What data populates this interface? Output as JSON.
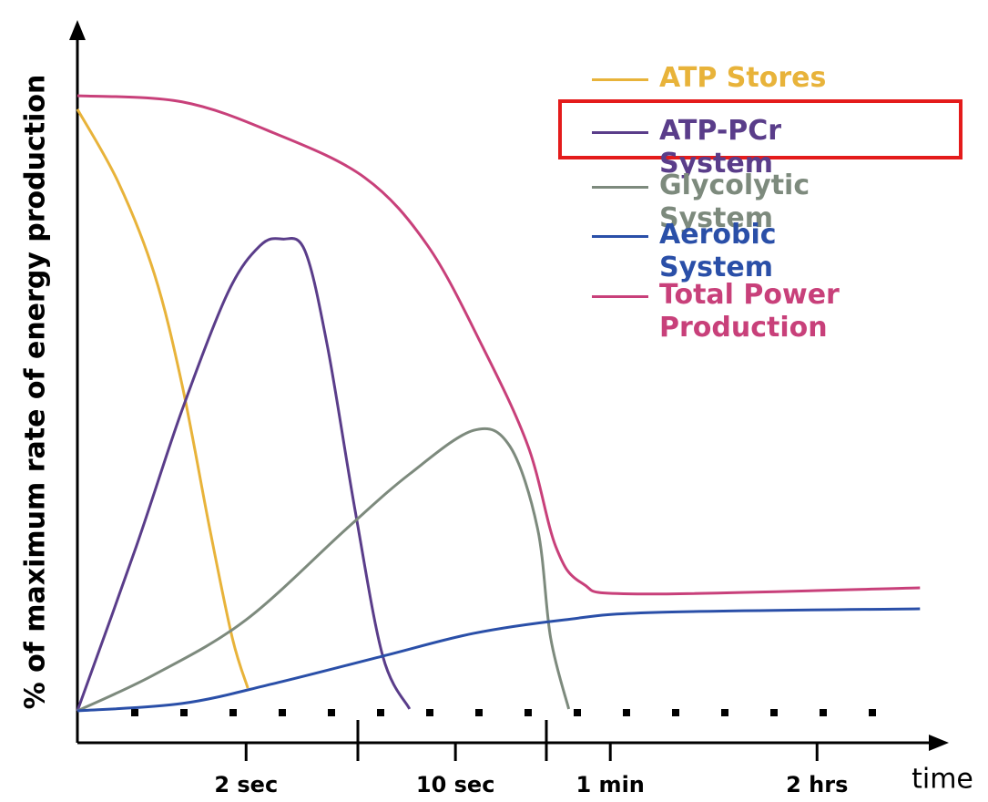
{
  "chart_data": {
    "type": "line",
    "y_label": "% of maximum rate of energy production",
    "x_label": "time",
    "xlim": [
      0,
      100
    ],
    "ylim": [
      0,
      100
    ],
    "xticks": [
      {
        "value": 19.5,
        "label": "2 sec"
      },
      {
        "value": 43.7,
        "label": "10 sec"
      },
      {
        "value": 61.6,
        "label": "1 min"
      },
      {
        "value": 85.5,
        "label": "2 hrs"
      }
    ],
    "series": [
      {
        "name": "ATP Stores",
        "color": "#e8b33a",
        "x": [
          0,
          4.7,
          8.9,
          12.1,
          15.3,
          17.9,
          19.7
        ],
        "values": [
          97.8,
          86,
          71,
          53,
          29.6,
          11.9,
          3.7
        ]
      },
      {
        "name": "ATP-PCr System",
        "color": "#5a3d8a",
        "x": [
          0,
          6.8,
          12.1,
          17.4,
          21.1,
          23.7,
          26.3,
          28.9,
          32.1,
          35.3,
          38.4
        ],
        "values": [
          0,
          26.7,
          48.9,
          68,
          75.6,
          76.7,
          74.8,
          59.3,
          32.6,
          8.9,
          0.3
        ]
      },
      {
        "name": "Glycolytic System",
        "color": "#7d8a7d",
        "x": [
          0,
          8.9,
          19.5,
          31.1,
          38.4,
          45.8,
          50,
          53.2,
          54.7,
          56.8
        ],
        "values": [
          0,
          5.9,
          14.8,
          29.6,
          38.5,
          45.6,
          43,
          29.6,
          11.9,
          0.3
        ]
      },
      {
        "name": "Aerobic System",
        "color": "#2a4fa8",
        "x": [
          0,
          12.1,
          22.6,
          35.3,
          45.8,
          56.3,
          66.8,
          97.4
        ],
        "values": [
          0,
          1.2,
          4.4,
          8.9,
          12.6,
          14.8,
          16,
          16.6
        ]
      },
      {
        "name": "Total Power Production",
        "color": "#c8407a",
        "x": [
          0,
          12.1,
          22.6,
          33.2,
          40.5,
          46.8,
          52.1,
          55.3,
          58.4,
          64.7,
          97.4
        ],
        "values": [
          100,
          99,
          94,
          86.7,
          75.6,
          59.3,
          43,
          26.7,
          20.7,
          19,
          20
        ]
      }
    ]
  }
}
